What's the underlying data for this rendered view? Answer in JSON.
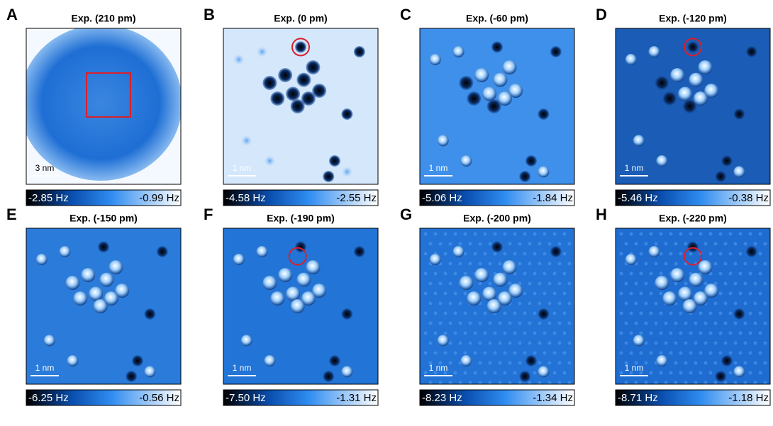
{
  "panels": [
    {
      "letter": "A",
      "title": "Exp. (210 pm)",
      "scale_bar": "3 nm",
      "colorbar": {
        "min": "-2.85 Hz",
        "max": "-0.99 Hz"
      }
    },
    {
      "letter": "B",
      "title": "Exp. (0 pm)",
      "scale_bar": "1 nm",
      "colorbar": {
        "min": "-4.58 Hz",
        "max": "-2.55 Hz"
      }
    },
    {
      "letter": "C",
      "title": "Exp. (-60 pm)",
      "scale_bar": "1 nm",
      "colorbar": {
        "min": "-5.06 Hz",
        "max": "-1.84 Hz"
      }
    },
    {
      "letter": "D",
      "title": "Exp. (-120 pm)",
      "scale_bar": "1 nm",
      "colorbar": {
        "min": "-5.46 Hz",
        "max": "-0.38 Hz"
      }
    },
    {
      "letter": "E",
      "title": "Exp. (-150 pm)",
      "scale_bar": "1 nm",
      "colorbar": {
        "min": "-6.25 Hz",
        "max": "-0.56 Hz"
      }
    },
    {
      "letter": "F",
      "title": "Exp. (-190 pm)",
      "scale_bar": "1 nm",
      "colorbar": {
        "min": "-7.50 Hz",
        "max": "-1.31 Hz"
      }
    },
    {
      "letter": "G",
      "title": "Exp. (-200 pm)",
      "scale_bar": "1 nm",
      "colorbar": {
        "min": "-8.23 Hz",
        "max": "-1.34 Hz"
      }
    },
    {
      "letter": "H",
      "title": "Exp. (-220 pm)",
      "scale_bar": "1 nm",
      "colorbar": {
        "min": "-8.71 Hz",
        "max": "-1.18 Hz"
      }
    }
  ]
}
